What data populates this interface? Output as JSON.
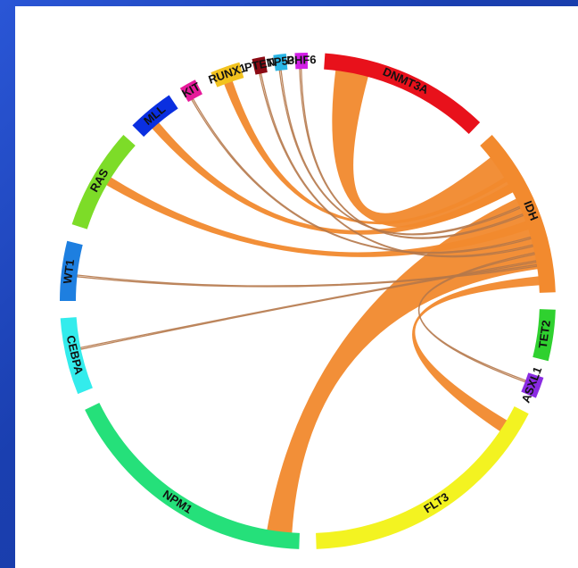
{
  "colors": {
    "background": "#1a3fb0",
    "panel": "#ffffff",
    "ribbon": "#f28a2e",
    "ribbon_thin": "#b5784a"
  },
  "segments": [
    {
      "id": "DNMT3A",
      "label": "DNMT3A",
      "color": "#e8111b"
    },
    {
      "id": "IDH",
      "label": "IDH",
      "color": "#f28a2e"
    },
    {
      "id": "TET2",
      "label": "TET2",
      "color": "#2fd12f"
    },
    {
      "id": "ASXL1",
      "label": "ASXL1",
      "color": "#8a2be2"
    },
    {
      "id": "FLT3",
      "label": "FLT3",
      "color": "#f3f321"
    },
    {
      "id": "NPM1",
      "label": "NPM1",
      "color": "#25e07a"
    },
    {
      "id": "CEBPA",
      "label": "CEBPA",
      "color": "#33ecec"
    },
    {
      "id": "WT1",
      "label": "WT1",
      "color": "#1e7fe0"
    },
    {
      "id": "RAS",
      "label": "RAS",
      "color": "#7ddc28"
    },
    {
      "id": "MLL",
      "label": "MLL",
      "color": "#0a2fe0"
    },
    {
      "id": "KIT",
      "label": "KIT",
      "color": "#e61a9a"
    },
    {
      "id": "RUNX1",
      "label": "RUNX1",
      "color": "#f2c21e"
    },
    {
      "id": "PTEN",
      "label": "PTEN",
      "color": "#8b0a14"
    },
    {
      "id": "TP53",
      "label": "TP53",
      "color": "#2ab6e6"
    },
    {
      "id": "PHF6",
      "label": "PHF6",
      "color": "#d21ee6"
    }
  ],
  "links": [
    {
      "from": "DNMT3A",
      "to": "IDH",
      "weight": "thick"
    },
    {
      "from": "IDH",
      "to": "NPM1",
      "weight": "thick"
    },
    {
      "from": "IDH",
      "to": "FLT3",
      "weight": "medium"
    },
    {
      "from": "IDH",
      "to": "RAS",
      "weight": "medium"
    },
    {
      "from": "IDH",
      "to": "MLL",
      "weight": "medium"
    },
    {
      "from": "IDH",
      "to": "RUNX1",
      "weight": "medium"
    },
    {
      "from": "IDH",
      "to": "KIT",
      "weight": "thin"
    },
    {
      "from": "IDH",
      "to": "PTEN",
      "weight": "thin"
    },
    {
      "from": "IDH",
      "to": "TP53",
      "weight": "thin"
    },
    {
      "from": "IDH",
      "to": "PHF6",
      "weight": "thin"
    },
    {
      "from": "IDH",
      "to": "ASXL1",
      "weight": "thin"
    },
    {
      "from": "IDH",
      "to": "CEBPA",
      "weight": "thin"
    },
    {
      "from": "IDH",
      "to": "WT1",
      "weight": "thin"
    }
  ]
}
